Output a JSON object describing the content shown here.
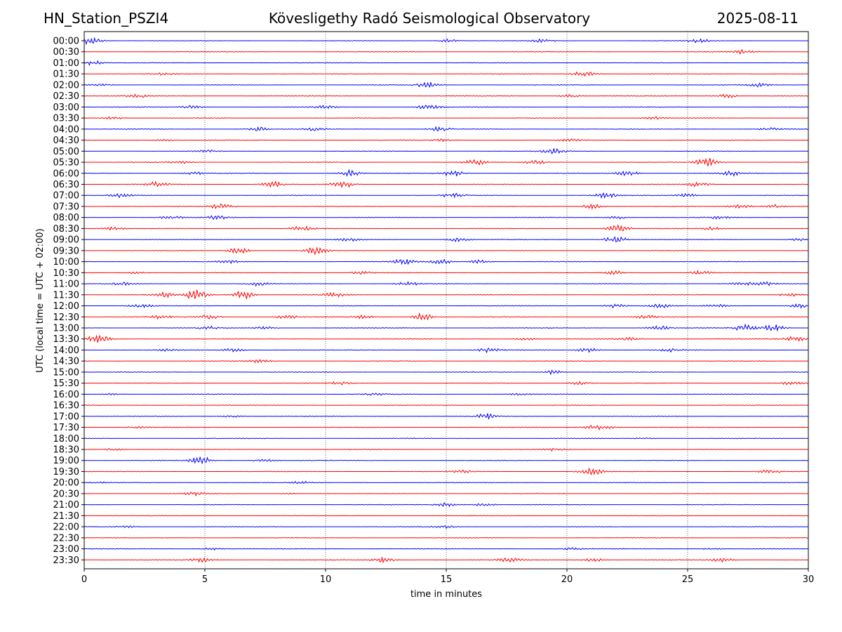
{
  "header": {
    "station": "HN_Station_PSZI4",
    "observatory": "Kövesligethy Radó Seismological Observatory",
    "date": "2025-08-11"
  },
  "chart_data": {
    "type": "line",
    "title": "Kövesligethy Radó Seismological Observatory",
    "xlabel": "time in minutes",
    "ylabel": "UTC (local time = UTC + 02:00)",
    "xlim": [
      0,
      30
    ],
    "xticks": [
      "0",
      "5",
      "10",
      "15",
      "20",
      "25",
      "30"
    ],
    "vertical_gridlines_at": [
      5,
      10,
      15,
      20,
      25
    ],
    "grid": "vertical dotted",
    "series_colors": [
      "#0000ff",
      "#ff0000"
    ],
    "rows": [
      {
        "label": "00:00",
        "events": [
          [
            0.3,
            1.0
          ],
          [
            15.1,
            0.4
          ],
          [
            19.0,
            0.4
          ],
          [
            25.5,
            0.5
          ]
        ]
      },
      {
        "label": "00:30",
        "events": [
          [
            27.3,
            0.5
          ]
        ]
      },
      {
        "label": "01:00",
        "events": [
          [
            0.3,
            0.6
          ]
        ]
      },
      {
        "label": "01:30",
        "events": [
          [
            20.7,
            0.8
          ],
          [
            3.2,
            0.3
          ]
        ]
      },
      {
        "label": "02:00",
        "events": [
          [
            14.2,
            0.8
          ],
          [
            28.0,
            0.5
          ],
          [
            0.7,
            0.3
          ]
        ]
      },
      {
        "label": "02:30",
        "events": [
          [
            2.2,
            0.5
          ],
          [
            20.1,
            0.4
          ],
          [
            26.6,
            0.5
          ]
        ]
      },
      {
        "label": "03:00",
        "events": [
          [
            14.3,
            0.9
          ],
          [
            10.0,
            0.4
          ],
          [
            4.5,
            0.4
          ]
        ]
      },
      {
        "label": "03:30",
        "events": [
          [
            1.2,
            0.4
          ],
          [
            23.6,
            0.4
          ]
        ]
      },
      {
        "label": "04:00",
        "events": [
          [
            7.2,
            0.6
          ],
          [
            14.7,
            0.5
          ],
          [
            9.6,
            0.4
          ],
          [
            28.4,
            0.4
          ]
        ]
      },
      {
        "label": "04:30",
        "events": [
          [
            3.3,
            0.3
          ],
          [
            14.8,
            0.3
          ],
          [
            20.1,
            0.3
          ]
        ]
      },
      {
        "label": "05:00",
        "events": [
          [
            19.4,
            0.7
          ],
          [
            5.0,
            0.3
          ]
        ]
      },
      {
        "label": "05:30",
        "events": [
          [
            25.8,
            1.2
          ],
          [
            16.2,
            0.7
          ],
          [
            18.7,
            0.6
          ],
          [
            4.0,
            0.3
          ]
        ]
      },
      {
        "label": "06:00",
        "events": [
          [
            11.0,
            0.8
          ],
          [
            15.3,
            0.8
          ],
          [
            22.5,
            0.7
          ],
          [
            26.8,
            0.7
          ],
          [
            4.6,
            0.4
          ]
        ]
      },
      {
        "label": "06:30",
        "events": [
          [
            7.8,
            0.8
          ],
          [
            10.7,
            0.9
          ],
          [
            25.4,
            0.7
          ],
          [
            3.0,
            0.6
          ]
        ]
      },
      {
        "label": "07:00",
        "events": [
          [
            15.3,
            0.6
          ],
          [
            21.6,
            0.7
          ],
          [
            1.5,
            0.5
          ],
          [
            25.0,
            0.4
          ]
        ]
      },
      {
        "label": "07:30",
        "events": [
          [
            5.7,
            0.8
          ],
          [
            21.1,
            0.7
          ],
          [
            27.2,
            0.6
          ],
          [
            28.6,
            0.5
          ]
        ]
      },
      {
        "label": "08:00",
        "events": [
          [
            5.5,
            0.5
          ],
          [
            3.6,
            0.4
          ],
          [
            22.1,
            0.4
          ],
          [
            26.3,
            0.4
          ]
        ]
      },
      {
        "label": "08:30",
        "events": [
          [
            22.1,
            1.0
          ],
          [
            9.0,
            0.6
          ],
          [
            1.2,
            0.4
          ],
          [
            26.0,
            0.4
          ]
        ]
      },
      {
        "label": "09:00",
        "events": [
          [
            22.0,
            1.0
          ],
          [
            11.0,
            0.4
          ],
          [
            15.5,
            0.5
          ],
          [
            29.6,
            0.3
          ]
        ]
      },
      {
        "label": "09:30",
        "events": [
          [
            6.4,
            0.8
          ],
          [
            9.6,
            0.9
          ]
        ]
      },
      {
        "label": "10:00",
        "events": [
          [
            13.3,
            1.0
          ],
          [
            14.8,
            0.6
          ],
          [
            16.4,
            0.5
          ],
          [
            6.0,
            0.4
          ]
        ]
      },
      {
        "label": "10:30",
        "events": [
          [
            11.5,
            0.4
          ],
          [
            22.0,
            0.5
          ],
          [
            25.5,
            0.5
          ],
          [
            2.2,
            0.3
          ]
        ]
      },
      {
        "label": "11:00",
        "events": [
          [
            13.4,
            0.5
          ],
          [
            7.2,
            0.5
          ],
          [
            27.2,
            0.5
          ],
          [
            28.1,
            0.5
          ],
          [
            1.6,
            0.4
          ]
        ]
      },
      {
        "label": "11:30",
        "events": [
          [
            4.6,
            1.5
          ],
          [
            6.6,
            1.1
          ],
          [
            3.3,
            0.6
          ],
          [
            10.4,
            0.6
          ],
          [
            29.2,
            0.4
          ]
        ]
      },
      {
        "label": "12:00",
        "events": [
          [
            2.3,
            0.5
          ],
          [
            22.0,
            0.6
          ],
          [
            23.8,
            0.5
          ],
          [
            26.2,
            0.4
          ],
          [
            29.6,
            0.5
          ]
        ]
      },
      {
        "label": "12:30",
        "events": [
          [
            14.0,
            0.9
          ],
          [
            5.2,
            0.6
          ],
          [
            3.2,
            0.5
          ],
          [
            8.4,
            0.5
          ],
          [
            11.6,
            0.4
          ],
          [
            23.3,
            0.4
          ]
        ]
      },
      {
        "label": "13:00",
        "events": [
          [
            27.4,
            0.9
          ],
          [
            28.6,
            0.9
          ],
          [
            23.8,
            0.6
          ],
          [
            5.2,
            0.4
          ],
          [
            7.5,
            0.4
          ]
        ]
      },
      {
        "label": "13:30",
        "events": [
          [
            0.6,
            1.0
          ],
          [
            29.5,
            0.7
          ],
          [
            22.6,
            0.5
          ],
          [
            18.3,
            0.3
          ]
        ]
      },
      {
        "label": "14:00",
        "events": [
          [
            16.8,
            0.6
          ],
          [
            20.9,
            0.6
          ],
          [
            24.3,
            0.5
          ],
          [
            6.2,
            0.4
          ],
          [
            3.4,
            0.3
          ]
        ]
      },
      {
        "label": "14:30",
        "events": [
          [
            7.3,
            0.4
          ]
        ]
      },
      {
        "label": "15:00",
        "events": [
          [
            19.4,
            0.6
          ]
        ]
      },
      {
        "label": "15:30",
        "events": [
          [
            10.6,
            0.4
          ],
          [
            20.5,
            0.4
          ],
          [
            29.3,
            0.4
          ]
        ]
      },
      {
        "label": "16:00",
        "events": [
          [
            12.0,
            0.3
          ],
          [
            1.2,
            0.3
          ],
          [
            18.0,
            0.2
          ]
        ]
      },
      {
        "label": "16:30",
        "events": []
      },
      {
        "label": "17:00",
        "events": [
          [
            16.7,
            0.7
          ],
          [
            6.1,
            0.3
          ]
        ]
      },
      {
        "label": "17:30",
        "events": [
          [
            21.0,
            0.5
          ],
          [
            21.6,
            0.4
          ],
          [
            2.2,
            0.3
          ]
        ]
      },
      {
        "label": "18:00",
        "events": [
          [
            23.2,
            0.2
          ]
        ]
      },
      {
        "label": "18:30",
        "events": [
          [
            1.2,
            0.3
          ],
          [
            19.5,
            0.3
          ]
        ]
      },
      {
        "label": "19:00",
        "events": [
          [
            4.8,
            1.0
          ],
          [
            7.5,
            0.4
          ]
        ]
      },
      {
        "label": "19:30",
        "events": [
          [
            21.0,
            0.9
          ],
          [
            28.4,
            0.4
          ],
          [
            15.7,
            0.3
          ]
        ]
      },
      {
        "label": "20:00",
        "events": [
          [
            9.0,
            0.3
          ],
          [
            0.6,
            0.2
          ]
        ]
      },
      {
        "label": "20:30",
        "events": [
          [
            4.6,
            0.4
          ],
          [
            8.5,
            0.2
          ]
        ]
      },
      {
        "label": "21:00",
        "events": [
          [
            15.0,
            0.5
          ],
          [
            16.6,
            0.5
          ]
        ]
      },
      {
        "label": "21:30",
        "events": []
      },
      {
        "label": "22:00",
        "events": [
          [
            15.0,
            0.4
          ],
          [
            1.8,
            0.3
          ]
        ]
      },
      {
        "label": "22:30",
        "events": []
      },
      {
        "label": "23:00",
        "events": [
          [
            5.3,
            0.3
          ],
          [
            20.2,
            0.3
          ],
          [
            26.0,
            0.2
          ]
        ]
      },
      {
        "label": "23:30",
        "events": [
          [
            12.4,
            0.8
          ],
          [
            17.6,
            0.6
          ],
          [
            26.4,
            0.5
          ],
          [
            4.9,
            0.5
          ],
          [
            21.1,
            0.5
          ]
        ]
      }
    ]
  }
}
